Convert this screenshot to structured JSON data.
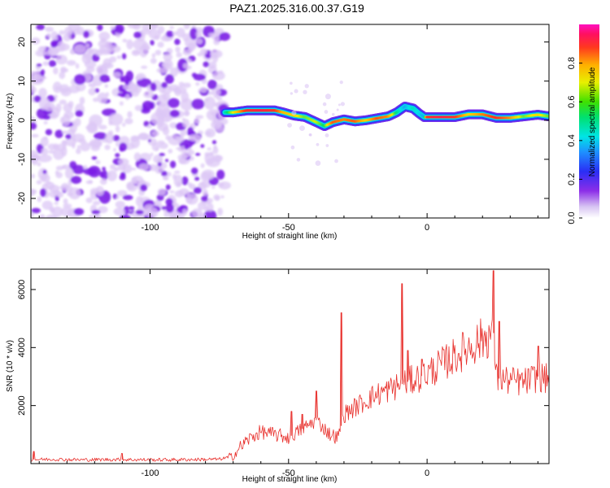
{
  "figure": {
    "title": "PAZ1.2025.316.00.37.G19"
  },
  "colors": {
    "noise": "#7b1fe6",
    "noise_light": "#dcc7f5",
    "snr_line": "#e8302c",
    "axis": "#000000"
  },
  "chart_data": [
    {
      "type": "heatmap",
      "name": "spectrogram",
      "title": "PAZ1.2025.316.00.37.G19",
      "xlabel": "Height of straight line (km)",
      "ylabel": "Frequency (Hz)",
      "xlim": [
        -143,
        44
      ],
      "ylim": [
        -25,
        24.5
      ],
      "xticks": [
        -100,
        -50,
        0
      ],
      "xtick_labels": [
        "-100",
        "-50",
        "0"
      ],
      "yticks": [
        -20,
        -10,
        0,
        10,
        20
      ],
      "ytick_labels": [
        "-20",
        "-10",
        "0",
        "10",
        "20"
      ],
      "noise_region_x": [
        -143,
        -73
      ],
      "signal_start_x": -73,
      "ridge": {
        "x": [
          -73,
          -70,
          -65,
          -60,
          -55,
          -52,
          -48,
          -44,
          -40,
          -37,
          -34,
          -30,
          -26,
          -22,
          -18,
          -14,
          -11,
          -8,
          -5,
          -3,
          -1,
          0,
          5,
          10,
          15,
          20,
          25,
          30,
          35,
          40,
          44
        ],
        "freq": [
          2,
          2,
          2.5,
          2.5,
          2.5,
          2,
          1.2,
          0.8,
          -0.5,
          -1.5,
          -0.5,
          0.2,
          -0.3,
          0,
          0.5,
          1,
          2,
          3.5,
          3,
          1.8,
          0.8,
          0.8,
          0.8,
          0.8,
          1.5,
          1.5,
          0.6,
          0.6,
          1,
          1.4,
          1
        ],
        "amplitude": [
          0.5,
          0.65,
          0.9,
          0.95,
          0.9,
          0.75,
          0.7,
          0.6,
          0.65,
          0.55,
          0.85,
          0.8,
          0.85,
          0.7,
          0.85,
          0.8,
          0.55,
          0.4,
          0.5,
          0.45,
          0.4,
          0.9,
          0.95,
          0.9,
          0.7,
          0.8,
          0.9,
          0.8,
          0.6,
          0.7,
          0.6
        ]
      },
      "colorbar": {
        "label": "Normalized spectral amplitude",
        "range": [
          0.0,
          1.0
        ],
        "ticks": [
          0.0,
          0.2,
          0.4,
          0.6,
          0.8
        ],
        "tick_labels": [
          "0.0",
          "0.2",
          "0.4",
          "0.6",
          "0.8"
        ],
        "colormap": "rainbow (purple-blue-cyan-green-yellow-orange-red-magenta)"
      }
    },
    {
      "type": "line",
      "name": "snr",
      "xlabel": "Height of straight line (km)",
      "ylabel": "SNR (10 * v/v)",
      "xlim": [
        -143,
        44
      ],
      "ylim": [
        0,
        6700
      ],
      "xticks": [
        -100,
        -50,
        0
      ],
      "xtick_labels": [
        "-100",
        "-50",
        "0"
      ],
      "yticks": [
        2000,
        4000,
        6000
      ],
      "ytick_labels": [
        "2000",
        "4000",
        "6000"
      ],
      "series": [
        {
          "name": "SNR",
          "x": [
            -143,
            -135,
            -125,
            -115,
            -105,
            -95,
            -85,
            -75,
            -70,
            -68,
            -65,
            -60,
            -55,
            -50,
            -45,
            -40,
            -35,
            -32,
            -30,
            -25,
            -20,
            -15,
            -10,
            -5,
            0,
            5,
            10,
            15,
            20,
            24,
            25,
            30,
            35,
            40,
            44
          ],
          "values": [
            140,
            150,
            130,
            140,
            135,
            130,
            140,
            150,
            250,
            500,
            800,
            1100,
            1000,
            900,
            1200,
            1500,
            1000,
            900,
            1700,
            2000,
            2300,
            2500,
            2700,
            2900,
            3100,
            3400,
            3700,
            4000,
            4300,
            4500,
            2950,
            2850,
            2800,
            3000,
            2900
          ]
        }
      ],
      "spikes": {
        "x": [
          -142,
          -110,
          -49,
          -45,
          -40,
          -31,
          -9,
          -7,
          -2,
          24,
          26,
          40
        ],
        "values": [
          420,
          350,
          1800,
          1700,
          2500,
          5200,
          6200,
          3900,
          3600,
          6650,
          4900,
          4050
        ]
      }
    }
  ]
}
